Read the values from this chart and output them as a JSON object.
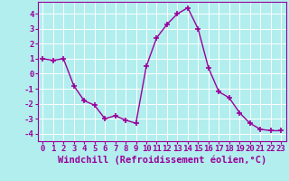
{
  "x": [
    0,
    1,
    2,
    3,
    4,
    5,
    6,
    7,
    8,
    9,
    10,
    11,
    12,
    13,
    14,
    15,
    16,
    17,
    18,
    19,
    20,
    21,
    22,
    23
  ],
  "y": [
    1.0,
    0.9,
    1.0,
    -0.8,
    -1.8,
    -2.1,
    -3.0,
    -2.8,
    -3.1,
    -3.3,
    0.5,
    2.4,
    3.3,
    4.0,
    4.4,
    3.0,
    0.4,
    -1.2,
    -1.6,
    -2.6,
    -3.3,
    -3.7,
    -3.8,
    -3.8
  ],
  "line_color": "#990099",
  "marker": "+",
  "markersize": 4,
  "linewidth": 1.0,
  "background_color": "#b2eeee",
  "grid_color": "#aadddd",
  "xlabel": "Windchill (Refroidissement éolien,°C)",
  "ylim": [
    -4.5,
    4.8
  ],
  "xlim": [
    -0.5,
    23.5
  ],
  "yticks": [
    -4,
    -3,
    -2,
    -1,
    0,
    1,
    2,
    3,
    4
  ],
  "xticks": [
    0,
    1,
    2,
    3,
    4,
    5,
    6,
    7,
    8,
    9,
    10,
    11,
    12,
    13,
    14,
    15,
    16,
    17,
    18,
    19,
    20,
    21,
    22,
    23
  ],
  "tick_color": "#990099",
  "tick_fontsize": 6.5,
  "xlabel_fontsize": 7.5
}
